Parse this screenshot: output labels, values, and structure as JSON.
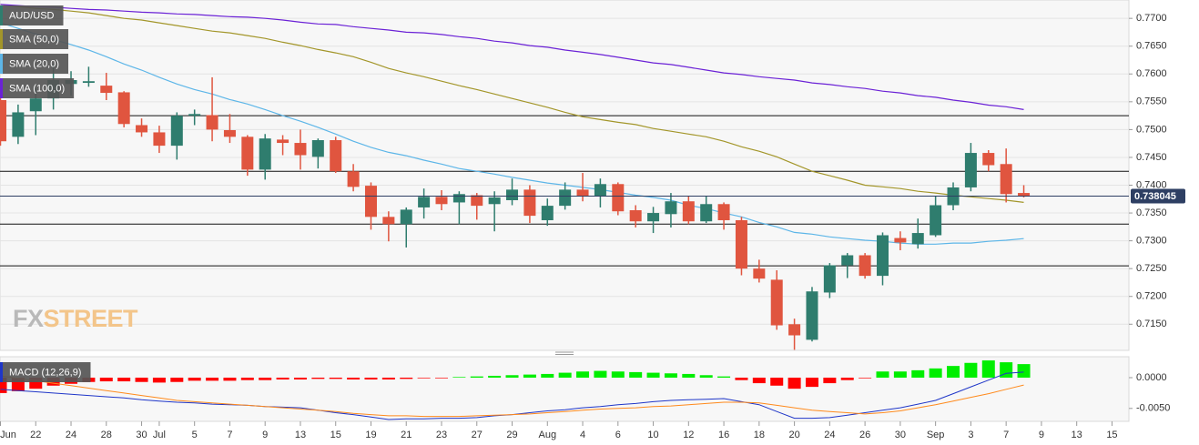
{
  "chart_data": [
    {
      "type": "candlestick",
      "categories": [
        "Jun",
        null,
        "22",
        null,
        "24",
        null,
        "28",
        null,
        "30",
        "Jul",
        null,
        "5",
        null,
        "7",
        null,
        "9",
        null,
        "13",
        null,
        "15",
        null,
        "19",
        null,
        "21",
        null,
        "23",
        null,
        "27",
        null,
        "29",
        null,
        "Aug",
        null,
        "4",
        null,
        "6",
        null,
        "10",
        null,
        "12",
        null,
        "16",
        null,
        "18",
        null,
        "20",
        null,
        "24",
        null,
        "26",
        null,
        "30",
        null,
        "Sep",
        null,
        "3",
        null,
        "7",
        null,
        "9",
        null,
        "13",
        null,
        "15"
      ],
      "series": [
        {
          "name": "AUD/USD",
          "up_color": "#2f7d6e",
          "down_color": "#e0553f",
          "open": [
            0.7553,
            0.7487,
            0.7533,
            0.7556,
            0.7582,
            0.7584,
            0.7579,
            0.7567,
            0.7508,
            0.7495,
            0.7471,
            0.7525,
            0.7526,
            0.7499,
            0.7487,
            0.7428,
            0.7482,
            0.7476,
            0.7451,
            0.7481,
            0.7425,
            0.7399,
            0.7343,
            0.733,
            0.736,
            0.7379,
            0.7369,
            0.7382,
            0.7366,
            0.7373,
            0.7392,
            0.7337,
            0.7363,
            0.7392,
            0.7381,
            0.7402,
            0.7355,
            0.7335,
            0.7348,
            0.7371,
            0.7335,
            0.7366,
            0.7337,
            0.725,
            0.723,
            0.715,
            0.7122,
            0.7207,
            0.7256,
            0.7274,
            0.7237,
            0.7305,
            0.7294,
            0.731,
            0.7364,
            0.7396,
            0.7458,
            0.7438,
            0.7386,
            null,
            null,
            null,
            null,
            null
          ],
          "high": [
            0.7561,
            0.7545,
            0.7574,
            0.7618,
            0.7605,
            0.7613,
            0.7602,
            0.7569,
            0.752,
            0.7507,
            0.7531,
            0.7536,
            0.7594,
            0.7528,
            0.749,
            0.7492,
            0.749,
            0.75,
            0.7484,
            0.7487,
            0.7438,
            0.7405,
            0.7353,
            0.736,
            0.7394,
            0.7391,
            0.7389,
            0.7386,
            0.7389,
            0.7412,
            0.74,
            0.7376,
            0.7405,
            0.7422,
            0.7412,
            0.7405,
            0.7364,
            0.7361,
            0.7386,
            0.7381,
            0.7381,
            0.7369,
            0.7343,
            0.7266,
            0.7247,
            0.716,
            0.7217,
            0.726,
            0.7278,
            0.7278,
            0.7315,
            0.7317,
            0.734,
            0.7381,
            0.7405,
            0.7476,
            0.7463,
            0.7466,
            0.74,
            null,
            null,
            null,
            null,
            null
          ],
          "low": [
            0.7471,
            0.7474,
            0.749,
            0.7536,
            0.7561,
            0.7577,
            0.7553,
            0.7504,
            0.7487,
            0.7458,
            0.7446,
            0.7508,
            0.7479,
            0.7476,
            0.7417,
            0.741,
            0.7454,
            0.7428,
            0.743,
            0.7422,
            0.7389,
            0.732,
            0.7299,
            0.7288,
            0.734,
            0.7355,
            0.733,
            0.7338,
            0.7317,
            0.7364,
            0.7332,
            0.7327,
            0.7356,
            0.7371,
            0.736,
            0.7346,
            0.7324,
            0.7314,
            0.7324,
            0.733,
            0.7332,
            0.732,
            0.7238,
            0.7225,
            0.714,
            0.7104,
            0.7119,
            0.7197,
            0.7233,
            0.7232,
            0.722,
            0.7283,
            0.7286,
            0.7307,
            0.7355,
            0.7389,
            0.7425,
            0.7369,
            0.7378,
            null,
            null,
            null,
            null,
            null
          ],
          "close": [
            0.7479,
            0.7531,
            0.7556,
            0.7589,
            0.7589,
            0.7587,
            0.7566,
            0.751,
            0.7495,
            0.7471,
            0.7525,
            0.7528,
            0.75,
            0.7487,
            0.7428,
            0.7484,
            0.7476,
            0.7454,
            0.7481,
            0.7425,
            0.7397,
            0.7343,
            0.733,
            0.7356,
            0.7379,
            0.7366,
            0.7384,
            0.7363,
            0.7378,
            0.7392,
            0.7345,
            0.7363,
            0.7392,
            0.7381,
            0.7402,
            0.7353,
            0.7335,
            0.735,
            0.7371,
            0.7335,
            0.7366,
            0.7337,
            0.725,
            0.7232,
            0.7148,
            0.713,
            0.7209,
            0.7256,
            0.7274,
            0.7237,
            0.731,
            0.7297,
            0.7314,
            0.7364,
            0.7396,
            0.7458,
            0.7436,
            0.7384,
            0.738,
            null,
            null,
            null,
            null,
            null
          ]
        },
        {
          "name": "SMA (50,0)",
          "color": "#a3962a",
          "values": [
            0.7725,
            0.7721,
            0.7718,
            0.7716,
            0.7713,
            0.771,
            0.7705,
            0.77,
            0.7697,
            0.7692,
            0.7687,
            0.7682,
            0.7677,
            0.7674,
            0.7669,
            0.7664,
            0.7657,
            0.7651,
            0.7644,
            0.7638,
            0.7631,
            0.7621,
            0.761,
            0.7602,
            0.7595,
            0.7587,
            0.7579,
            0.7572,
            0.7564,
            0.7556,
            0.7548,
            0.754,
            0.7531,
            0.7523,
            0.7518,
            0.7513,
            0.7509,
            0.7502,
            0.7497,
            0.7492,
            0.7487,
            0.7479,
            0.7469,
            0.7461,
            0.7451,
            0.7438,
            0.7425,
            0.7417,
            0.7409,
            0.74,
            0.7397,
            0.7394,
            0.7389,
            0.7386,
            0.7382,
            0.7379,
            0.7376,
            0.7373,
            0.7369,
            null,
            null,
            null,
            null,
            null
          ]
        },
        {
          "name": "SMA (20,0)",
          "color": "#5db6e8",
          "values": [
            0.7692,
            0.7682,
            0.7672,
            0.7662,
            0.7653,
            0.7643,
            0.7631,
            0.7618,
            0.7607,
            0.7594,
            0.7582,
            0.7572,
            0.7564,
            0.7554,
            0.7546,
            0.7536,
            0.7525,
            0.7515,
            0.7504,
            0.7492,
            0.7479,
            0.7468,
            0.7459,
            0.7453,
            0.7445,
            0.7438,
            0.743,
            0.7425,
            0.742,
            0.7414,
            0.7409,
            0.7404,
            0.74,
            0.7396,
            0.7392,
            0.7387,
            0.7382,
            0.7378,
            0.7373,
            0.7364,
            0.7358,
            0.735,
            0.7343,
            0.7333,
            0.7325,
            0.7315,
            0.7312,
            0.7307,
            0.7304,
            0.7301,
            0.7299,
            0.7296,
            0.7294,
            0.7294,
            0.7296,
            0.7296,
            0.7299,
            0.7301,
            0.7304,
            null,
            null,
            null,
            null,
            null
          ]
        },
        {
          "name": "SMA (100,0)",
          "color": "#6b22d6",
          "values": [
            0.7725,
            0.7723,
            0.7721,
            0.772,
            0.7718,
            0.7716,
            0.7715,
            0.7713,
            0.7711,
            0.771,
            0.7708,
            0.7707,
            0.7705,
            0.7703,
            0.7702,
            0.77,
            0.7697,
            0.7693,
            0.769,
            0.7689,
            0.7685,
            0.7682,
            0.7679,
            0.7675,
            0.7674,
            0.7671,
            0.7667,
            0.7664,
            0.7659,
            0.7656,
            0.7651,
            0.7648,
            0.7643,
            0.7639,
            0.7635,
            0.763,
            0.7625,
            0.762,
            0.7617,
            0.7612,
            0.7607,
            0.7602,
            0.7599,
            0.7595,
            0.7592,
            0.7589,
            0.7584,
            0.7581,
            0.7577,
            0.7574,
            0.7569,
            0.7566,
            0.7561,
            0.7558,
            0.7553,
            0.7549,
            0.7544,
            0.7541,
            0.7536,
            null,
            null,
            null,
            null,
            null
          ]
        }
      ],
      "levels": [
        0.7525,
        0.7425,
        0.733,
        0.7255
      ],
      "last_price": 0.738045,
      "ylim": [
        0.7103,
        0.7733
      ],
      "yticks": [
        {
          "value": 0.715,
          "label": "0.7150"
        },
        {
          "value": 0.72,
          "label": "0.7200"
        },
        {
          "value": 0.725,
          "label": "0.7250"
        },
        {
          "value": 0.73,
          "label": "0.7300"
        },
        {
          "value": 0.735,
          "label": "0.7350"
        },
        {
          "value": 0.74,
          "label": "0.7400"
        },
        {
          "value": 0.745,
          "label": "0.7450"
        },
        {
          "value": 0.75,
          "label": "0.7500"
        },
        {
          "value": 0.755,
          "label": "0.7550"
        },
        {
          "value": 0.76,
          "label": "0.7600"
        },
        {
          "value": 0.765,
          "label": "0.7650"
        },
        {
          "value": 0.77,
          "label": "0.7700"
        }
      ],
      "grid": true,
      "watermark": [
        "FX",
        "STREET"
      ]
    },
    {
      "type": "macd",
      "histogram": {
        "up_color": "#00ee00",
        "down_color": "#ff0000",
        "values": [
          -0.0025,
          -0.0022,
          -0.0018,
          -0.0013,
          -0.001,
          -0.0007,
          -0.0006,
          -0.0006,
          -0.0007,
          -0.0008,
          -0.0007,
          -0.0005,
          -0.0005,
          -0.0005,
          -0.0004,
          -0.0004,
          -0.0003,
          -0.0003,
          -0.0002,
          -0.0002,
          -0.0003,
          -0.0003,
          -0.0003,
          -0.0002,
          -0.0001,
          -0.0001,
          0.0001,
          0.0002,
          0.0003,
          0.0004,
          0.0005,
          0.0006,
          0.0008,
          0.001,
          0.0011,
          0.001,
          0.0009,
          0.0008,
          0.0007,
          0.0006,
          0.0004,
          0.0002,
          -0.0004,
          -0.0009,
          -0.0013,
          -0.0018,
          -0.0015,
          -0.0009,
          -0.0004,
          -0.0001,
          0.001,
          0.001,
          0.0012,
          0.0015,
          0.0019,
          0.0024,
          0.0028,
          0.0025,
          0.0022,
          null,
          null,
          null,
          null,
          null
        ]
      },
      "series": [
        {
          "name": "MACD (12,26,9)",
          "color": "#1f36c8",
          "values": [
            -0.0019,
            -0.0021,
            -0.0023,
            -0.0025,
            -0.0027,
            -0.0029,
            -0.0031,
            -0.0033,
            -0.0036,
            -0.0038,
            -0.004,
            -0.0041,
            -0.0043,
            -0.0044,
            -0.0045,
            -0.0047,
            -0.0048,
            -0.0049,
            -0.0053,
            -0.0057,
            -0.006,
            -0.0064,
            -0.0068,
            -0.0067,
            -0.0067,
            -0.0066,
            -0.0066,
            -0.0065,
            -0.0062,
            -0.006,
            -0.0057,
            -0.0054,
            -0.0052,
            -0.0049,
            -0.0047,
            -0.0044,
            -0.0042,
            -0.0039,
            -0.0037,
            -0.0036,
            -0.0035,
            -0.0034,
            -0.0039,
            -0.0044,
            -0.0055,
            -0.0066,
            -0.0066,
            -0.0065,
            -0.0061,
            -0.0057,
            -0.0053,
            -0.0049,
            -0.0043,
            -0.0037,
            -0.0026,
            -0.0015,
            -0.0004,
            0.0007,
            0.0009,
            null,
            null,
            null,
            null,
            null
          ]
        },
        {
          "color": "#ff8a1c",
          "values": [
            0.0003,
            -0.0001,
            -0.0005,
            -0.0009,
            -0.0013,
            -0.0017,
            -0.0021,
            -0.0025,
            -0.0029,
            -0.0033,
            -0.0037,
            -0.0039,
            -0.0041,
            -0.0043,
            -0.0045,
            -0.0047,
            -0.0049,
            -0.0051,
            -0.0053,
            -0.0055,
            -0.0058,
            -0.006,
            -0.0062,
            -0.0062,
            -0.0063,
            -0.0063,
            -0.0063,
            -0.0062,
            -0.0061,
            -0.006,
            -0.0059,
            -0.0057,
            -0.0055,
            -0.0053,
            -0.0051,
            -0.005,
            -0.0049,
            -0.0047,
            -0.0046,
            -0.0044,
            -0.0042,
            -0.004,
            -0.004,
            -0.0041,
            -0.0045,
            -0.0049,
            -0.0053,
            -0.0055,
            -0.0057,
            -0.0059,
            -0.0057,
            -0.0054,
            -0.0049,
            -0.0044,
            -0.0038,
            -0.0032,
            -0.0026,
            -0.0019,
            -0.0012,
            null,
            null,
            null,
            null,
            null
          ]
        }
      ],
      "ylim": [
        -0.0071,
        0.0034
      ],
      "yticks": [
        {
          "value": 0,
          "label": "0.0000"
        },
        {
          "value": -0.005,
          "label": "-0.0050"
        }
      ]
    }
  ]
}
